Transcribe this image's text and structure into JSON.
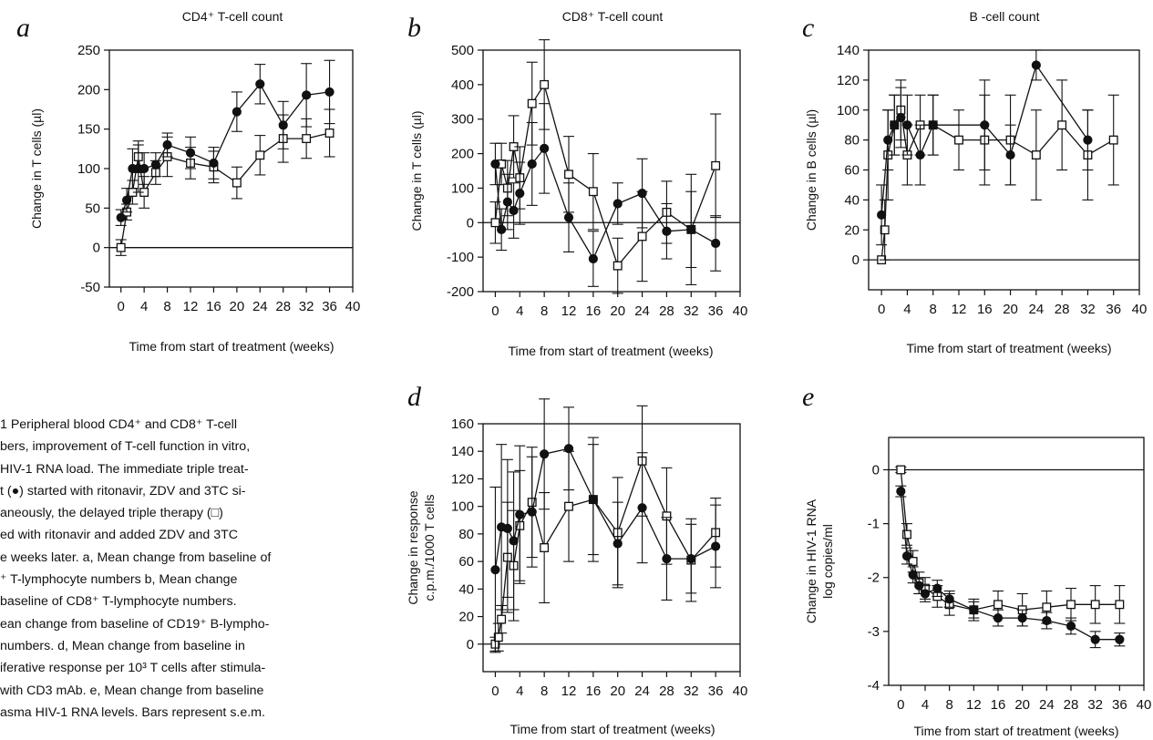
{
  "caption": {
    "lines": [
      "1  Peripheral blood CD4⁺ and CD8⁺ T-cell",
      "bers, improvement of T-cell function in vitro,",
      "HIV-1 RNA load. The immediate triple treat-",
      "t (●) started with ritonavir, ZDV and 3TC si-",
      "aneously, the delayed triple therapy (□)",
      "ed with ritonavir and added ZDV and 3TC",
      "e weeks later. a, Mean change from baseline of",
      "⁺ T-lymphocyte numbers b, Mean change",
      "baseline of CD8⁺ T-lymphocyte numbers.",
      "ean change from baseline of CD19⁺ B-lympho-",
      "numbers. d, Mean change from baseline in",
      "iferative response per 10³ T cells after stimula-",
      "with CD3 mAb. e, Mean change from baseline",
      "asma HIV-1 RNA levels. Bars represent s.e.m."
    ]
  },
  "chart_data": [
    {
      "panel": "a",
      "type": "line",
      "title": "CD4⁺ T-cell count",
      "xlabel": "Time from start of treatment (weeks)",
      "ylabel": "Change in T cells (µl)",
      "xlim": [
        -2,
        40
      ],
      "ylim": [
        -50,
        250
      ],
      "xticks": [
        0,
        4,
        8,
        12,
        16,
        20,
        24,
        28,
        32,
        36,
        40
      ],
      "yticks": [
        -50,
        0,
        50,
        100,
        150,
        200,
        250
      ],
      "ytick_labels": [
        "-50",
        "0",
        "50",
        "100",
        "150",
        "200",
        "250"
      ],
      "zero_line": true,
      "series": [
        {
          "marker": "filled-circle",
          "x": [
            0,
            1,
            2,
            3,
            4,
            6,
            8,
            12,
            16,
            20,
            24,
            28,
            32,
            36
          ],
          "y": [
            38,
            60,
            100,
            100,
            100,
            105,
            130,
            120,
            107,
            172,
            207,
            155,
            193,
            197
          ],
          "err": [
            10,
            15,
            25,
            30,
            20,
            15,
            15,
            20,
            20,
            25,
            25,
            30,
            40,
            40
          ]
        },
        {
          "marker": "open-square",
          "x": [
            0,
            1,
            2,
            3,
            4,
            6,
            8,
            12,
            16,
            20,
            24,
            28,
            32,
            36
          ],
          "y": [
            0,
            45,
            70,
            115,
            70,
            95,
            115,
            107,
            102,
            82,
            117,
            138,
            138,
            145
          ],
          "err": [
            10,
            10,
            15,
            20,
            20,
            15,
            25,
            20,
            20,
            20,
            25,
            30,
            25,
            30
          ]
        }
      ]
    },
    {
      "panel": "b",
      "type": "line",
      "title": "CD8⁺ T-cell count",
      "xlabel": "Time from start of treatment (weeks)",
      "ylabel": "Change in T cells (µl)",
      "xlim": [
        -2,
        40
      ],
      "ylim": [
        -200,
        500
      ],
      "xticks": [
        0,
        4,
        8,
        12,
        16,
        20,
        24,
        28,
        32,
        36,
        40
      ],
      "yticks": [
        -200,
        -100,
        0,
        100,
        200,
        300,
        400,
        500
      ],
      "ytick_labels": [
        "-200",
        "-100",
        "0",
        "100",
        "200",
        "300",
        "400",
        "500"
      ],
      "zero_line": true,
      "series": [
        {
          "marker": "filled-circle",
          "x": [
            0,
            1,
            2,
            3,
            4,
            6,
            8,
            12,
            16,
            20,
            24,
            28,
            32,
            36
          ],
          "y": [
            170,
            -20,
            60,
            35,
            85,
            170,
            215,
            15,
            -105,
            55,
            85,
            -25,
            -20,
            -60
          ],
          "err": [
            60,
            60,
            80,
            80,
            90,
            120,
            130,
            100,
            80,
            60,
            100,
            80,
            110,
            80
          ]
        },
        {
          "marker": "open-square",
          "x": [
            0,
            1,
            2,
            3,
            4,
            6,
            8,
            12,
            16,
            20,
            24,
            28,
            32,
            36
          ],
          "y": [
            0,
            170,
            100,
            220,
            130,
            345,
            400,
            140,
            90,
            -125,
            -40,
            30,
            -20,
            165
          ],
          "err": [
            60,
            60,
            80,
            90,
            90,
            120,
            130,
            110,
            110,
            80,
            130,
            90,
            160,
            150
          ]
        }
      ]
    },
    {
      "panel": "c",
      "type": "line",
      "title": "B -cell count",
      "xlabel": "Time from start of treatment (weeks)",
      "ylabel": "Change in B cells (µl)",
      "xlim": [
        -2,
        40
      ],
      "ylim": [
        -20,
        140
      ],
      "xticks": [
        0,
        4,
        8,
        12,
        16,
        20,
        24,
        28,
        32,
        36,
        40
      ],
      "yticks": [
        0,
        20,
        40,
        60,
        80,
        100,
        120,
        140
      ],
      "ytick_labels": [
        "0",
        "20",
        "40",
        "60",
        "80",
        "100",
        "120",
        "140"
      ],
      "zero_line": true,
      "series": [
        {
          "marker": "filled-circle",
          "x": [
            0,
            1,
            2,
            3,
            4,
            6,
            8,
            16,
            20,
            24,
            32
          ],
          "y": [
            30,
            80,
            90,
            95,
            90,
            70,
            90,
            90,
            70,
            130,
            80
          ],
          "err": [
            20,
            20,
            20,
            20,
            20,
            20,
            20,
            30,
            20,
            10,
            20
          ]
        },
        {
          "marker": "open-square",
          "x": [
            0,
            0.5,
            1,
            2,
            3,
            4,
            6,
            8,
            12,
            16,
            20,
            24,
            28,
            32,
            36
          ],
          "y": [
            0,
            20,
            70,
            90,
            100,
            70,
            90,
            90,
            80,
            80,
            80,
            70,
            90,
            70,
            80
          ],
          "err": [
            0,
            20,
            30,
            20,
            20,
            20,
            20,
            20,
            20,
            30,
            30,
            30,
            30,
            30,
            30
          ]
        }
      ]
    },
    {
      "panel": "d",
      "type": "line",
      "title": "",
      "xlabel": "Time from start of treatment (weeks)",
      "ylabel": "Change in response\nc.p.m./1000 T cells",
      "xlim": [
        -2,
        40
      ],
      "ylim": [
        -20,
        160
      ],
      "xticks": [
        0,
        4,
        8,
        12,
        16,
        20,
        24,
        28,
        32,
        36,
        40
      ],
      "yticks": [
        0,
        20,
        40,
        60,
        80,
        100,
        120,
        140,
        160
      ],
      "ytick_labels": [
        "0",
        "20",
        "40",
        "60",
        "80",
        "100",
        "120",
        "140",
        "160"
      ],
      "zero_line": true,
      "series": [
        {
          "marker": "filled-circle",
          "x": [
            0,
            1,
            2,
            3,
            4,
            6,
            8,
            12,
            16,
            20,
            24,
            28,
            32,
            36
          ],
          "y": [
            54,
            85,
            84,
            75,
            94,
            96,
            138,
            142,
            105,
            73,
            99,
            62,
            62,
            71
          ],
          "err": [
            60,
            60,
            50,
            50,
            50,
            40,
            40,
            30,
            40,
            30,
            40,
            30,
            25,
            30
          ]
        },
        {
          "marker": "open-square",
          "x": [
            0,
            0.5,
            1,
            2,
            3,
            4,
            6,
            8,
            12,
            16,
            20,
            24,
            28,
            32,
            36
          ],
          "y": [
            0,
            5,
            18,
            63,
            57,
            86,
            103,
            70,
            100,
            105,
            81,
            133,
            93,
            61,
            81
          ],
          "err": [
            5,
            10,
            10,
            40,
            40,
            40,
            40,
            40,
            40,
            45,
            40,
            40,
            35,
            30,
            25
          ]
        }
      ]
    },
    {
      "panel": "e",
      "type": "line",
      "title": "",
      "xlabel": "Time from start of treatment (weeks)",
      "ylabel": "Change in HIV-1 RNA\nlog copies/ml",
      "xlim": [
        -2,
        40
      ],
      "ylim": [
        -4,
        0.6
      ],
      "xticks": [
        0,
        4,
        8,
        12,
        16,
        20,
        24,
        28,
        32,
        36,
        40
      ],
      "yticks": [
        -4,
        -3,
        -2,
        -1,
        0
      ],
      "ytick_labels": [
        "-4",
        "-3",
        "-2",
        "-1",
        "0"
      ],
      "zero_line": true,
      "series": [
        {
          "marker": "filled-circle",
          "x": [
            0,
            1,
            2,
            3,
            4,
            6,
            8,
            12,
            16,
            20,
            24,
            28,
            32,
            36
          ],
          "y": [
            -0.4,
            -1.6,
            -1.95,
            -2.15,
            -2.3,
            -2.2,
            -2.4,
            -2.6,
            -2.75,
            -2.75,
            -2.8,
            -2.9,
            -3.15,
            -3.15
          ],
          "err": [
            0.1,
            0.15,
            0.15,
            0.15,
            0.15,
            0.15,
            0.15,
            0.15,
            0.15,
            0.15,
            0.15,
            0.15,
            0.15,
            0.12
          ]
        },
        {
          "marker": "open-square",
          "x": [
            0,
            1,
            2,
            3,
            4,
            6,
            8,
            12,
            16,
            20,
            24,
            28,
            32,
            36
          ],
          "y": [
            0,
            -1.2,
            -1.7,
            -2.1,
            -2.2,
            -2.35,
            -2.5,
            -2.6,
            -2.5,
            -2.6,
            -2.55,
            -2.5,
            -2.5,
            -2.5
          ],
          "err": [
            0.05,
            0.2,
            0.2,
            0.2,
            0.2,
            0.2,
            0.2,
            0.2,
            0.25,
            0.3,
            0.3,
            0.3,
            0.35,
            0.35
          ]
        }
      ]
    }
  ]
}
